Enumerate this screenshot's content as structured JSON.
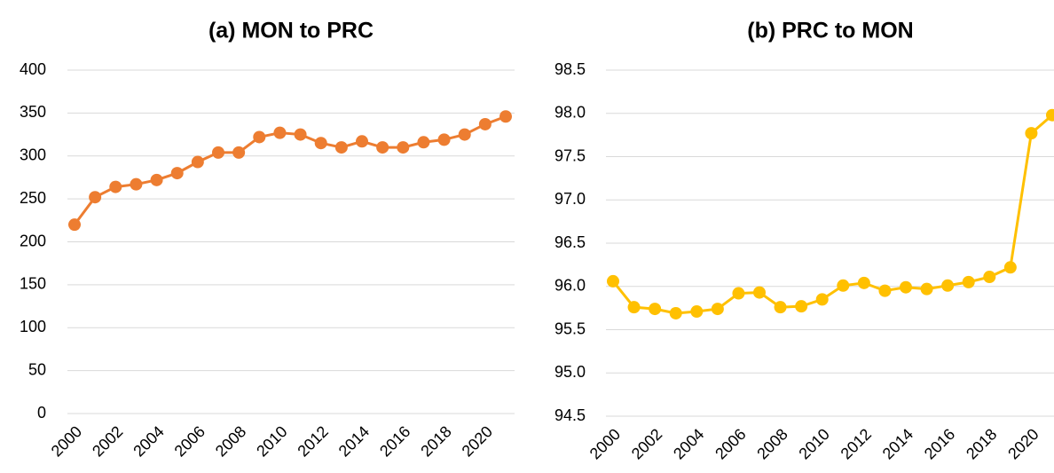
{
  "chart_data": [
    {
      "type": "line",
      "title": "(a) MON to PRC",
      "x": [
        2000,
        2001,
        2002,
        2003,
        2004,
        2005,
        2006,
        2007,
        2008,
        2009,
        2010,
        2011,
        2012,
        2013,
        2014,
        2015,
        2016,
        2017,
        2018,
        2019,
        2020,
        2021
      ],
      "series": [
        {
          "name": "MON to PRC",
          "color": "#ed7d31",
          "values": [
            220,
            252,
            264,
            267,
            272,
            280,
            293,
            304,
            304,
            322,
            327,
            325,
            315,
            310,
            317,
            310,
            310,
            316,
            319,
            325,
            337,
            346
          ]
        }
      ],
      "xlim": [
        2000,
        2021
      ],
      "xticks": [
        2000,
        2002,
        2004,
        2006,
        2008,
        2010,
        2012,
        2014,
        2016,
        2018,
        2020
      ],
      "ylim": [
        0,
        400
      ],
      "yticks": [
        0,
        50,
        100,
        150,
        200,
        250,
        300,
        350,
        400
      ],
      "grid": true
    },
    {
      "type": "line",
      "title": "(b) PRC to MON",
      "x": [
        2000,
        2001,
        2002,
        2003,
        2004,
        2005,
        2006,
        2007,
        2008,
        2009,
        2010,
        2011,
        2012,
        2013,
        2014,
        2015,
        2016,
        2017,
        2018,
        2019,
        2020,
        2021
      ],
      "series": [
        {
          "name": "PRC to MON",
          "color": "#ffc000",
          "values": [
            96.06,
            95.76,
            95.74,
            95.69,
            95.71,
            95.74,
            95.92,
            95.93,
            95.76,
            95.77,
            95.85,
            96.01,
            96.04,
            95.95,
            95.99,
            95.97,
            96.01,
            96.05,
            96.11,
            96.22,
            97.77,
            97.98
          ]
        }
      ],
      "xlim": [
        2000,
        2021
      ],
      "xticks": [
        2000,
        2002,
        2004,
        2006,
        2008,
        2010,
        2012,
        2014,
        2016,
        2018,
        2020
      ],
      "ylim": [
        94.5,
        98.5
      ],
      "yticks": [
        94.5,
        {
          "value": 95,
          "label": "95.0"
        },
        95.5,
        {
          "value": 96,
          "label": "96.0"
        },
        96.5,
        {
          "value": 97,
          "label": "97.0"
        },
        97.5,
        {
          "value": 98,
          "label": "98.0"
        },
        98.5
      ],
      "grid": true
    }
  ]
}
